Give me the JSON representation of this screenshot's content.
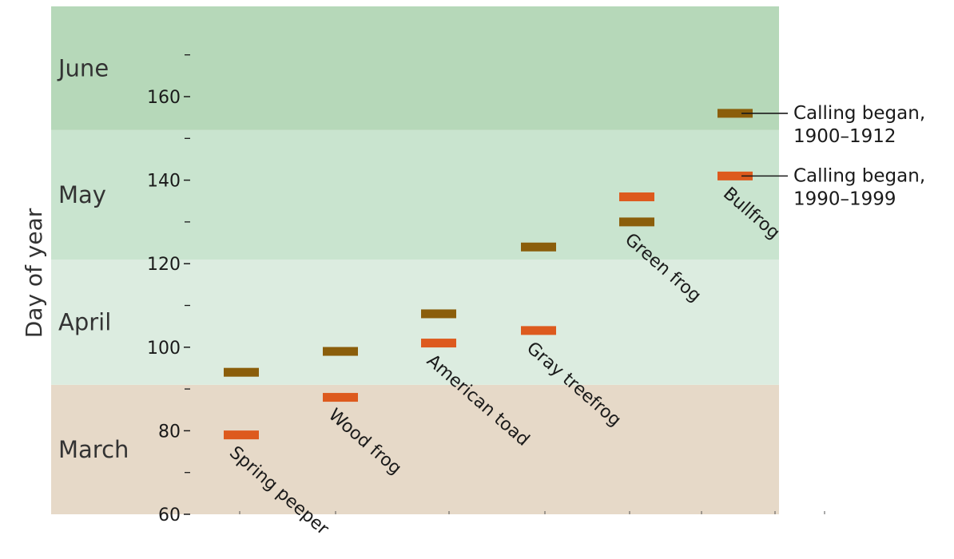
{
  "chart_data": {
    "type": "scatter",
    "title": "",
    "xlabel": "",
    "ylabel": "Day of year",
    "ylim": [
      60,
      172
    ],
    "yticks": [
      60,
      80,
      100,
      120,
      140,
      160
    ],
    "minor_yticks": [
      70,
      90,
      110,
      130,
      150,
      170
    ],
    "month_bands": [
      {
        "label": "March",
        "from": 60,
        "to": 91,
        "color": "#e6d9c8"
      },
      {
        "label": "April",
        "from": 91,
        "to": 121,
        "color": "#dcece0"
      },
      {
        "label": "May",
        "from": 121,
        "to": 152,
        "color": "#c9e4cf"
      },
      {
        "label": "June",
        "from": 152,
        "to": 182,
        "color": "#b6d8b9"
      }
    ],
    "categories": [
      "Spring peeper",
      "Wood frog",
      "American toad",
      "Gray treefrog",
      "Green frog",
      "Bullfrog"
    ],
    "series": [
      {
        "name": "Calling began,\n1900–1912",
        "color": "#8b5e0b",
        "values": [
          94,
          99,
          108,
          124,
          130,
          156
        ]
      },
      {
        "name": "Calling began,\n1990–1999",
        "color": "#dd5a1e",
        "values": [
          79,
          88,
          101,
          104,
          136,
          141
        ]
      }
    ],
    "legend": [
      {
        "line1": "Calling began,",
        "line2": "1900–1912"
      },
      {
        "line1": "Calling began,",
        "line2": "1990–1999"
      }
    ],
    "legend_placement": "right"
  }
}
